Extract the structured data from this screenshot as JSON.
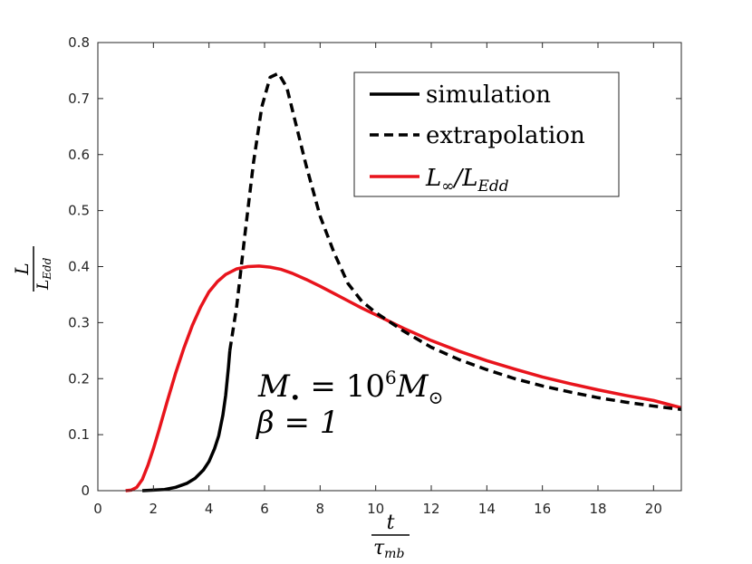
{
  "chart_data": {
    "type": "line",
    "xlim": [
      0,
      21
    ],
    "ylim": [
      0,
      0.8
    ],
    "xticks": [
      "0",
      "2",
      "4",
      "6",
      "8",
      "10",
      "12",
      "14",
      "16",
      "18",
      "20"
    ],
    "yticks": [
      "0",
      "0.1",
      "0.2",
      "0.3",
      "0.4",
      "0.5",
      "0.6",
      "0.7",
      "0.8"
    ],
    "xlabel": {
      "numerator": "t",
      "denominator_base": "τ",
      "denominator_sub": "mb"
    },
    "ylabel": {
      "numerator": "L",
      "denominator_base": "L",
      "denominator_sub": "Edd"
    },
    "annotation": {
      "line1_base": "M",
      "line1_sub": "•",
      "line1_eq": " = 10",
      "line1_exp": "6",
      "line1_unit": "M",
      "line1_unit_sub": "⊙",
      "line2": "β = 1"
    },
    "legend": {
      "position": "top-right",
      "simulation": "simulation",
      "extrapolation": "extrapolation",
      "linf_base": "L",
      "linf_sub": "∞",
      "linf_slash": "/L",
      "linf_sub2": "Edd"
    },
    "series": [
      {
        "name": "simulation",
        "color": "#000000",
        "style": "solid",
        "x": [
          1.6,
          2.0,
          2.4,
          2.8,
          3.2,
          3.5,
          3.8,
          4.0,
          4.2,
          4.35,
          4.5,
          4.6,
          4.7,
          4.75
        ],
        "y": [
          0.0,
          0.001,
          0.002,
          0.006,
          0.013,
          0.022,
          0.037,
          0.052,
          0.075,
          0.098,
          0.135,
          0.17,
          0.22,
          0.25
        ]
      },
      {
        "name": "extrapolation",
        "color": "#000000",
        "style": "dashed",
        "x": [
          4.75,
          5.0,
          5.3,
          5.6,
          5.9,
          6.2,
          6.5,
          6.8,
          7.1,
          7.5,
          8.0,
          8.5,
          9.0,
          9.5,
          10.0,
          11.0,
          12.0,
          13.0,
          14.0,
          15.0,
          16.0,
          17.0,
          18.0,
          19.0,
          20.0,
          21.0
        ],
        "y": [
          0.25,
          0.33,
          0.46,
          0.585,
          0.685,
          0.738,
          0.745,
          0.72,
          0.66,
          0.58,
          0.49,
          0.425,
          0.37,
          0.338,
          0.318,
          0.285,
          0.256,
          0.234,
          0.216,
          0.2,
          0.187,
          0.176,
          0.166,
          0.158,
          0.151,
          0.145
        ]
      },
      {
        "name": "L∞/LEdd",
        "color": "#e8141c",
        "style": "solid",
        "x": [
          1.0,
          1.2,
          1.4,
          1.6,
          1.8,
          2.0,
          2.2,
          2.5,
          2.8,
          3.1,
          3.4,
          3.7,
          4.0,
          4.3,
          4.6,
          5.0,
          5.4,
          5.8,
          6.2,
          6.6,
          7.0,
          7.5,
          8.0,
          8.5,
          9.0,
          9.5,
          10.0,
          11.0,
          12.0,
          13.0,
          14.0,
          15.0,
          16.0,
          17.0,
          18.0,
          19.0,
          20.0,
          21.0
        ],
        "y": [
          0.0,
          0.001,
          0.006,
          0.02,
          0.045,
          0.075,
          0.108,
          0.16,
          0.21,
          0.255,
          0.295,
          0.328,
          0.355,
          0.373,
          0.386,
          0.396,
          0.4,
          0.401,
          0.399,
          0.395,
          0.388,
          0.377,
          0.365,
          0.352,
          0.339,
          0.326,
          0.314,
          0.29,
          0.268,
          0.249,
          0.232,
          0.217,
          0.203,
          0.191,
          0.18,
          0.17,
          0.161,
          0.148
        ]
      }
    ]
  }
}
